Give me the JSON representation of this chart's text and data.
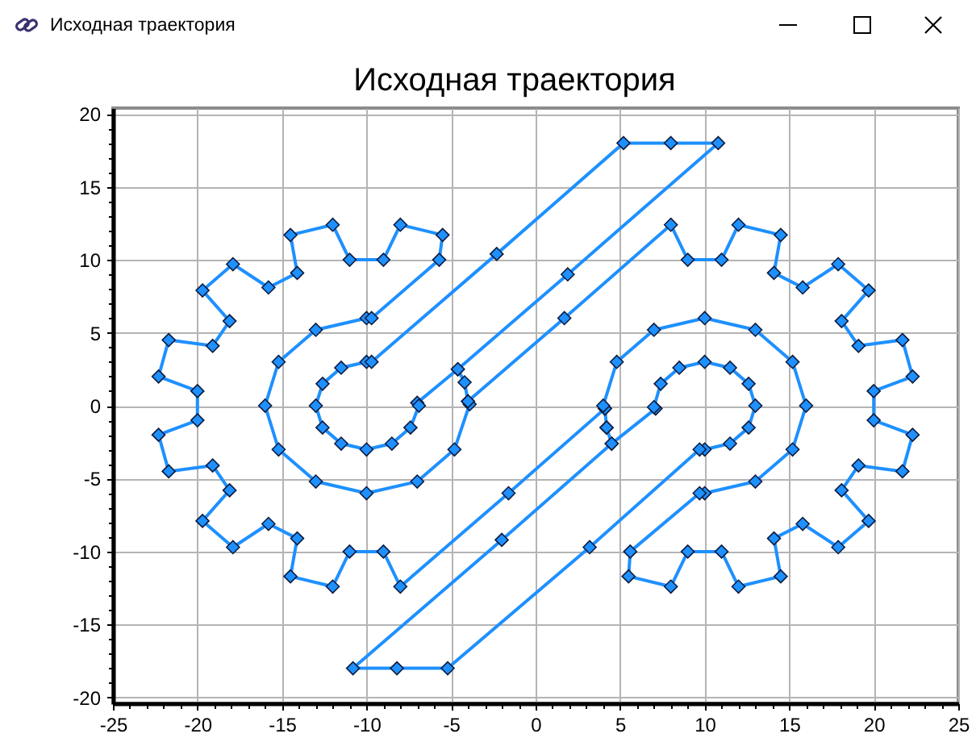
{
  "chart_data": {
    "type": "line",
    "title": "Исходная траектория",
    "x": [
      -4.6,
      -7,
      -6.9,
      -7.4,
      -8.5,
      -10,
      -11.5,
      -12.6,
      -13,
      -12.6,
      -11.5,
      -10,
      -9.7,
      -2.3,
      5.2,
      8,
      10.8,
      1.9,
      -4.6,
      -4.2,
      -4,
      -3.9,
      -4.8,
      -7,
      -10,
      -13,
      -15.2,
      -16,
      -15.2,
      -13,
      -10,
      -9.7,
      -5.7,
      -5.5,
      -8,
      -9,
      -11,
      -12,
      -14.5,
      -14.1,
      -15.8,
      -17.9,
      -19.7,
      -18.1,
      -19.1,
      -21.7,
      -22.3,
      -20,
      -20,
      -22.3,
      -21.7,
      -19.1,
      -18.1,
      -19.7,
      -17.9,
      -15.8,
      -14.1,
      -14.5,
      -12,
      -11,
      -9,
      -8,
      -1.6,
      4.1,
      4.2,
      4.5,
      7.1,
      7,
      7.4,
      8.5,
      10,
      11.5,
      12.6,
      13,
      12.6,
      11.5,
      10,
      9.7,
      3.2,
      -5.2,
      -8.2,
      -10.8,
      -2,
      4.5,
      4.2,
      4.1,
      4,
      4.8,
      7,
      10,
      13,
      15.2,
      16,
      15.2,
      13,
      10,
      9.7,
      5.6,
      5.5,
      8,
      9,
      11,
      12,
      14.5,
      14.1,
      15.8,
      17.9,
      19.7,
      18.1,
      19.1,
      21.7,
      22.3,
      20,
      20,
      22.3,
      21.7,
      19.1,
      18.1,
      19.7,
      17.9,
      15.8,
      14.1,
      14.5,
      12,
      11,
      9,
      8,
      1.7,
      -4
    ],
    "values": [
      2.5,
      0.2,
      0,
      -1.5,
      -2.6,
      -3,
      -2.6,
      -1.5,
      0,
      1.5,
      2.6,
      3,
      3,
      10.4,
      18,
      18,
      18,
      9,
      2.5,
      1.6,
      0.3,
      0.1,
      -3,
      -5.2,
      -6,
      -5.2,
      -3,
      0,
      3,
      5.2,
      6,
      6,
      10,
      11.7,
      12.4,
      10,
      10,
      12.4,
      11.7,
      9.1,
      8.1,
      9.7,
      7.9,
      5.8,
      4.1,
      4.5,
      2,
      1,
      -1,
      -2,
      -4.5,
      -4.1,
      -5.8,
      -7.9,
      -9.7,
      -8.1,
      -9.1,
      -11.7,
      -12.4,
      -10,
      -10,
      -12.4,
      -6,
      -0.2,
      -1.5,
      -2.6,
      -0.2,
      -0.1,
      1.5,
      2.6,
      3,
      2.6,
      1.5,
      0,
      -1.5,
      -2.6,
      -3,
      -3,
      -9.7,
      -18,
      -18,
      -18,
      -9.2,
      -2.6,
      -1.5,
      -0.2,
      0,
      3,
      5.2,
      6,
      5.2,
      3,
      0,
      -3,
      -5.2,
      -6,
      -6,
      -10,
      -11.7,
      -12.4,
      -10,
      -10,
      -12.4,
      -11.7,
      -9.1,
      -8.1,
      -9.7,
      -7.9,
      -5.8,
      -4.1,
      -4.5,
      -2,
      -1,
      1,
      2,
      4.5,
      4.1,
      5.8,
      7.9,
      9.7,
      8.1,
      9.1,
      11.7,
      12.4,
      10,
      10,
      12.4,
      6,
      0.3
    ],
    "color": "#1e90ff",
    "marker": "diamond",
    "line_style": "solid",
    "grid": true,
    "xlim": [
      -25,
      25
    ],
    "ylim": [
      -20.4,
      20.4
    ],
    "xticks": [
      -25,
      {
        "value": -24,
        "label": null
      },
      {
        "value": -23,
        "label": null
      },
      {
        "value": -22,
        "label": null
      },
      {
        "value": -21,
        "label": null
      },
      -20,
      {
        "value": -19,
        "label": null
      },
      {
        "value": -18,
        "label": null
      },
      {
        "value": -17,
        "label": null
      },
      {
        "value": -16,
        "label": null
      },
      -15,
      {
        "value": -14,
        "label": null
      },
      {
        "value": -13,
        "label": null
      },
      {
        "value": -12,
        "label": null
      },
      {
        "value": -11,
        "label": null
      },
      -10,
      {
        "value": -9,
        "label": null
      },
      {
        "value": -8,
        "label": null
      },
      {
        "value": -7,
        "label": null
      },
      {
        "value": -6,
        "label": null
      },
      -5,
      {
        "value": -4,
        "label": null
      },
      {
        "value": -3,
        "label": null
      },
      {
        "value": -2,
        "label": null
      },
      {
        "value": -1,
        "label": null
      },
      0,
      {
        "value": 1,
        "label": null
      },
      {
        "value": 2,
        "label": null
      },
      {
        "value": 3,
        "label": null
      },
      {
        "value": 4,
        "label": null
      },
      5,
      {
        "value": 6,
        "label": null
      },
      {
        "value": 7,
        "label": null
      },
      {
        "value": 8,
        "label": null
      },
      {
        "value": 9,
        "label": null
      },
      10,
      {
        "value": 11,
        "label": null
      },
      {
        "value": 12,
        "label": null
      },
      {
        "value": 13,
        "label": null
      },
      {
        "value": 14,
        "label": null
      },
      15,
      {
        "value": 16,
        "label": null
      },
      {
        "value": 17,
        "label": null
      },
      {
        "value": 18,
        "label": null
      },
      {
        "value": 19,
        "label": null
      },
      20,
      {
        "value": 21,
        "label": null
      },
      {
        "value": 22,
        "label": null
      },
      {
        "value": 23,
        "label": null
      },
      {
        "value": 24,
        "label": null
      },
      25
    ],
    "yticks": [
      -20,
      {
        "value": -19,
        "label": null
      },
      {
        "value": -18,
        "label": null
      },
      {
        "value": -17,
        "label": null
      },
      {
        "value": -16,
        "label": null
      },
      -15,
      {
        "value": -14,
        "label": null
      },
      {
        "value": -13,
        "label": null
      },
      {
        "value": -12,
        "label": null
      },
      {
        "value": -11,
        "label": null
      },
      -10,
      {
        "value": -9,
        "label": null
      },
      {
        "value": -8,
        "label": null
      },
      {
        "value": -7,
        "label": null
      },
      {
        "value": -6,
        "label": null
      },
      -5,
      {
        "value": -4,
        "label": null
      },
      {
        "value": -3,
        "label": null
      },
      {
        "value": -2,
        "label": null
      },
      {
        "value": -1,
        "label": null
      },
      0,
      {
        "value": 1,
        "label": null
      },
      {
        "value": 2,
        "label": null
      },
      {
        "value": 3,
        "label": null
      },
      {
        "value": 4,
        "label": null
      },
      5,
      {
        "value": 6,
        "label": null
      },
      {
        "value": 7,
        "label": null
      },
      {
        "value": 8,
        "label": null
      },
      {
        "value": 9,
        "label": null
      },
      10,
      {
        "value": 11,
        "label": null
      },
      {
        "value": 12,
        "label": null
      },
      {
        "value": 13,
        "label": null
      },
      {
        "value": 14,
        "label": null
      },
      15,
      {
        "value": 16,
        "label": null
      },
      {
        "value": 17,
        "label": null
      },
      {
        "value": 18,
        "label": null
      },
      {
        "value": 19,
        "label": null
      },
      20
    ]
  }
}
